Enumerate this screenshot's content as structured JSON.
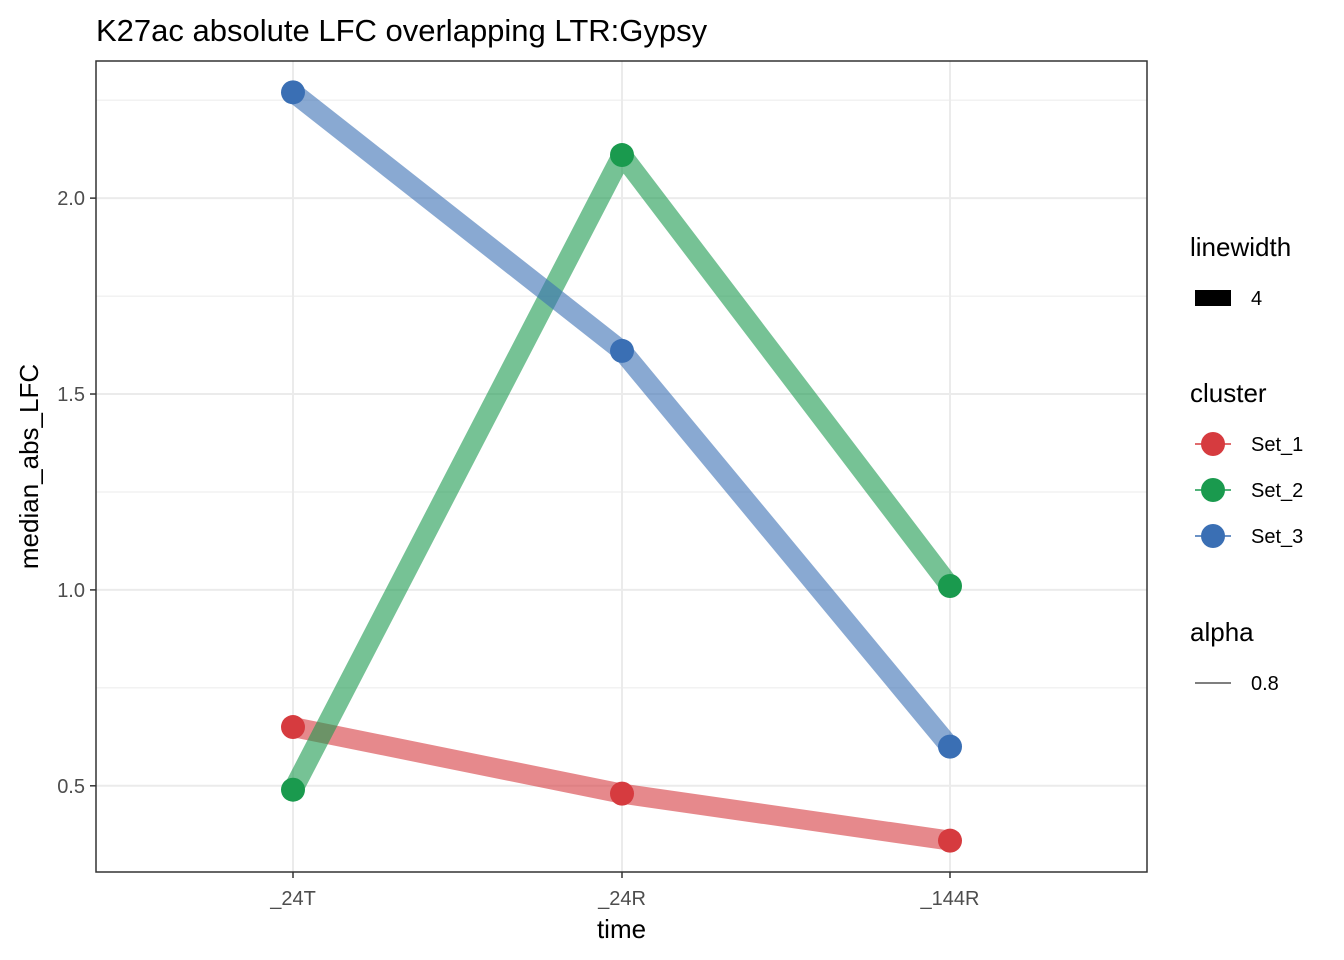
{
  "chart_data": {
    "type": "line",
    "title": "K27ac absolute LFC overlapping LTR:Gypsy",
    "xlabel": "time",
    "ylabel": "median_abs_LFC",
    "categories": [
      "_24T",
      "_24R",
      "_144R"
    ],
    "ylim": [
      0.28,
      2.35
    ],
    "yticks": [
      0.5,
      1.0,
      1.5,
      2.0
    ],
    "ytick_labels": [
      "0.5",
      "1.0",
      "1.5",
      "2.0"
    ],
    "grid": true,
    "line_alpha": 0.6,
    "series": [
      {
        "name": "Set_1",
        "color": "#d63b3f",
        "values": [
          0.65,
          0.48,
          0.36
        ]
      },
      {
        "name": "Set_2",
        "color": "#1a9a4e",
        "values": [
          0.49,
          2.11,
          1.01
        ]
      },
      {
        "name": "Set_3",
        "color": "#3a6fb4",
        "values": [
          2.27,
          1.61,
          0.6
        ]
      }
    ],
    "legend": {
      "position": "right",
      "groups": [
        {
          "title": "linewidth",
          "entries": [
            {
              "label": "4",
              "kind": "rect"
            }
          ]
        },
        {
          "title": "cluster",
          "entries": [
            {
              "label": "Set_1",
              "kind": "point",
              "color": "#d63b3f"
            },
            {
              "label": "Set_2",
              "kind": "point",
              "color": "#1a9a4e"
            },
            {
              "label": "Set_3",
              "kind": "point",
              "color": "#3a6fb4"
            }
          ]
        },
        {
          "title": "alpha",
          "entries": [
            {
              "label": "0.8",
              "kind": "line"
            }
          ]
        }
      ]
    }
  }
}
